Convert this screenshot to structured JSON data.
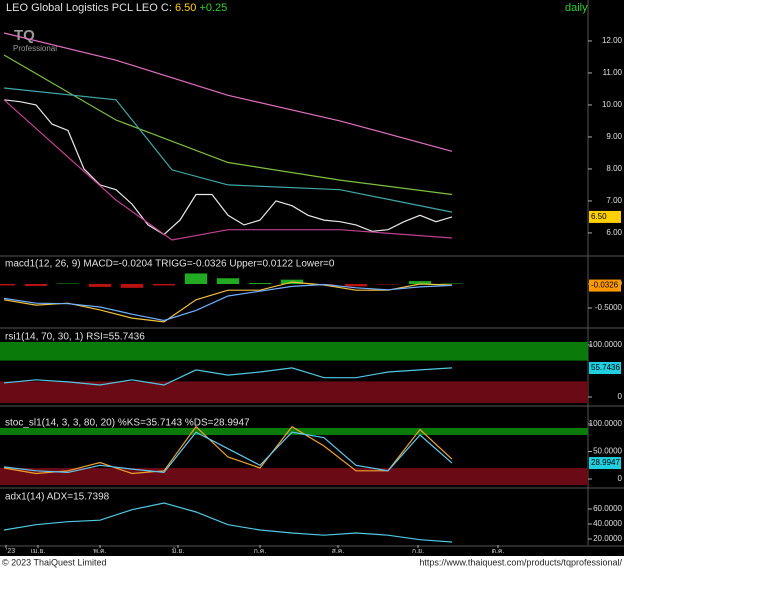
{
  "header": {
    "title": "LEO Global Logistics PCL LEO",
    "close_label": "C:",
    "close": "6.50",
    "change": "+0.25",
    "interval": "daily",
    "logo": "TQ",
    "logo_sub": "Professional"
  },
  "footer": {
    "copyright": "© 2023 ThaiQuest Limited",
    "url": "https://www.thaiquest.com/products/tqprofessional/"
  },
  "chart_data": [
    {
      "type": "line",
      "xlim": [
        0,
        147
      ],
      "ylim": [
        5.31,
        13.28
      ],
      "yticks": [
        {
          "value": 6,
          "label": "6.00"
        },
        {
          "value": 7,
          "label": "7.00"
        },
        {
          "value": 8,
          "label": "8.00"
        },
        {
          "value": 9,
          "label": "9.00"
        },
        {
          "value": 10,
          "label": "10.00"
        },
        {
          "value": 11,
          "label": "11.00"
        },
        {
          "value": 12,
          "label": "12.00"
        }
      ],
      "last_value": {
        "value": 6.5,
        "label": "6.50",
        "color": "#ffd000"
      },
      "x": [
        1,
        5,
        9,
        13,
        17,
        21,
        25,
        29,
        33,
        37,
        41,
        45,
        49,
        53,
        57,
        61,
        65,
        69,
        73,
        77,
        81,
        85,
        89,
        93,
        97,
        101,
        105,
        109,
        113
      ],
      "series": [
        {
          "color": "#e8e8e8",
          "values": [
            10.16,
            10.1,
            10.0,
            9.4,
            9.2,
            8.0,
            7.5,
            7.35,
            6.9,
            6.25,
            5.95,
            6.4,
            7.2,
            7.2,
            6.55,
            6.25,
            6.4,
            7.0,
            6.85,
            6.55,
            6.4,
            6.35,
            6.25,
            6.05,
            6.1,
            6.35,
            6.55,
            6.35,
            6.5
          ]
        },
        {
          "color": "#e070c0",
          "x": [
            1,
            29,
            57,
            85,
            113
          ],
          "values": [
            12.25,
            11.4,
            10.3,
            9.5,
            8.55
          ]
        },
        {
          "color": "#7fc040",
          "x": [
            1,
            29,
            57,
            85,
            113
          ],
          "values": [
            11.56,
            9.53,
            8.2,
            7.65,
            7.2
          ]
        },
        {
          "color": "#3fa8a8",
          "x": [
            1,
            29,
            43,
            57,
            85,
            113
          ],
          "values": [
            10.53,
            10.16,
            7.97,
            7.5,
            7.35,
            6.65
          ]
        },
        {
          "color": "#c04090",
          "x": [
            1,
            29,
            43,
            57,
            85,
            113
          ],
          "values": [
            10.16,
            7.03,
            5.78,
            6.1,
            6.1,
            5.84
          ]
        }
      ]
    },
    {
      "type": "line",
      "title": "macd1(12, 26, 9) MACD=-0.0204 TRIGG=-0.0326 Upper=0.0122 Lower=0",
      "xlim": [
        0,
        147
      ],
      "ylim": [
        -0.896,
        0.5625
      ],
      "yticks": [
        0,
        {
          "value": -0.5,
          "label": "-0.5000"
        }
      ],
      "last_value": {
        "value": -0.0326,
        "label": "-0.0326",
        "color": "#ff9900"
      },
      "x": [
        1,
        9,
        17,
        25,
        33,
        41,
        49,
        57,
        65,
        73,
        81,
        89,
        97,
        105,
        113
      ],
      "histogram": {
        "positive": "#22aa22",
        "negative": "#bb1111",
        "values": [
          -0.03,
          -0.04,
          0.01,
          -0.06,
          -0.08,
          -0.03,
          0.22,
          0.12,
          0.02,
          0.09,
          -0.01,
          -0.05,
          -0.01,
          0.06,
          0.01
        ]
      },
      "series": [
        {
          "color": "#f0c040",
          "values": [
            -0.33,
            -0.44,
            -0.4,
            -0.54,
            -0.71,
            -0.79,
            -0.33,
            -0.13,
            -0.13,
            0.04,
            -0.02,
            -0.13,
            -0.13,
            0,
            -0.02
          ]
        },
        {
          "color": "#70b0ff",
          "values": [
            -0.3,
            -0.4,
            -0.41,
            -0.48,
            -0.63,
            -0.76,
            -0.55,
            -0.25,
            -0.15,
            -0.05,
            -0.01,
            -0.08,
            -0.12,
            -0.06,
            -0.03
          ]
        }
      ]
    },
    {
      "type": "line",
      "title": "rsi1(14, 70, 30, 1) RSI=55.7436",
      "xlim": [
        0,
        147
      ],
      "ylim": [
        -15.4,
        128.8
      ],
      "yticks": [
        0,
        {
          "value": 100,
          "label": "100.0000"
        }
      ],
      "bands": [
        30,
        70
      ],
      "last_value": {
        "value": 55.7436,
        "label": "55.7436",
        "color": "#20d0e0"
      },
      "x": [
        1,
        9,
        17,
        25,
        33,
        41,
        49,
        57,
        65,
        73,
        81,
        89,
        97,
        105,
        113
      ],
      "series": [
        {
          "color": "#4fc8e0",
          "values": [
            27,
            33,
            29,
            23,
            33,
            23,
            52,
            42,
            48,
            56,
            37,
            37,
            48,
            52,
            56
          ]
        }
      ]
    },
    {
      "type": "line",
      "title": "stoc_sl1(14, 3, 3, 80, 20) %KS=35.7143 %DS=28.9947",
      "xlim": [
        0,
        147
      ],
      "ylim": [
        -14.5,
        114.5
      ],
      "yticks": [
        0,
        {
          "value": 50,
          "label": "50.0000"
        },
        {
          "value": 100,
          "label": "100.0000"
        }
      ],
      "bands": [
        20,
        80
      ],
      "last_value": {
        "value": 28.9947,
        "label": "28.9947",
        "color": "#20d0e0"
      },
      "x": [
        1,
        9,
        17,
        25,
        33,
        41,
        49,
        57,
        65,
        73,
        81,
        89,
        97,
        105,
        113
      ],
      "series": [
        {
          "color": "#f0a030",
          "values": [
            20,
            10,
            15,
            30,
            10,
            15,
            95,
            40,
            20,
            95,
            60,
            15,
            15,
            90,
            36
          ]
        },
        {
          "color": "#60c8f0",
          "values": [
            22,
            15,
            12,
            25,
            18,
            12,
            85,
            55,
            25,
            85,
            75,
            25,
            15,
            80,
            29
          ]
        }
      ]
    },
    {
      "type": "line",
      "title": "adx1(14) ADX=15.7398",
      "xlim": [
        0,
        147
      ],
      "ylim": [
        12,
        85.3
      ],
      "yticks": [
        {
          "value": 20,
          "label": "20.0000"
        },
        {
          "value": 40,
          "label": "40.0000"
        },
        {
          "value": 60,
          "label": "60.0000"
        }
      ],
      "x": [
        1,
        9,
        17,
        25,
        33,
        41,
        49,
        57,
        65,
        73,
        81,
        89,
        97,
        105,
        113
      ],
      "xticks": [
        {
          "value": 1.5,
          "label": "'23"
        },
        {
          "value": 9.5,
          "label": "เม.ย."
        },
        {
          "value": 25,
          "label": "พ.ค."
        },
        {
          "value": 44.5,
          "label": "มิ.ย."
        },
        {
          "value": 65,
          "label": "ก.ค."
        },
        {
          "value": 84.5,
          "label": "ส.ค."
        },
        {
          "value": 104.5,
          "label": "ก.ย."
        },
        {
          "value": 124.5,
          "label": "ต.ค."
        }
      ],
      "series": [
        {
          "color": "#4fc8e0",
          "values": [
            32,
            39,
            43,
            45,
            59,
            68,
            56,
            39,
            32,
            28,
            25,
            28,
            25,
            19,
            16
          ]
        }
      ]
    }
  ]
}
